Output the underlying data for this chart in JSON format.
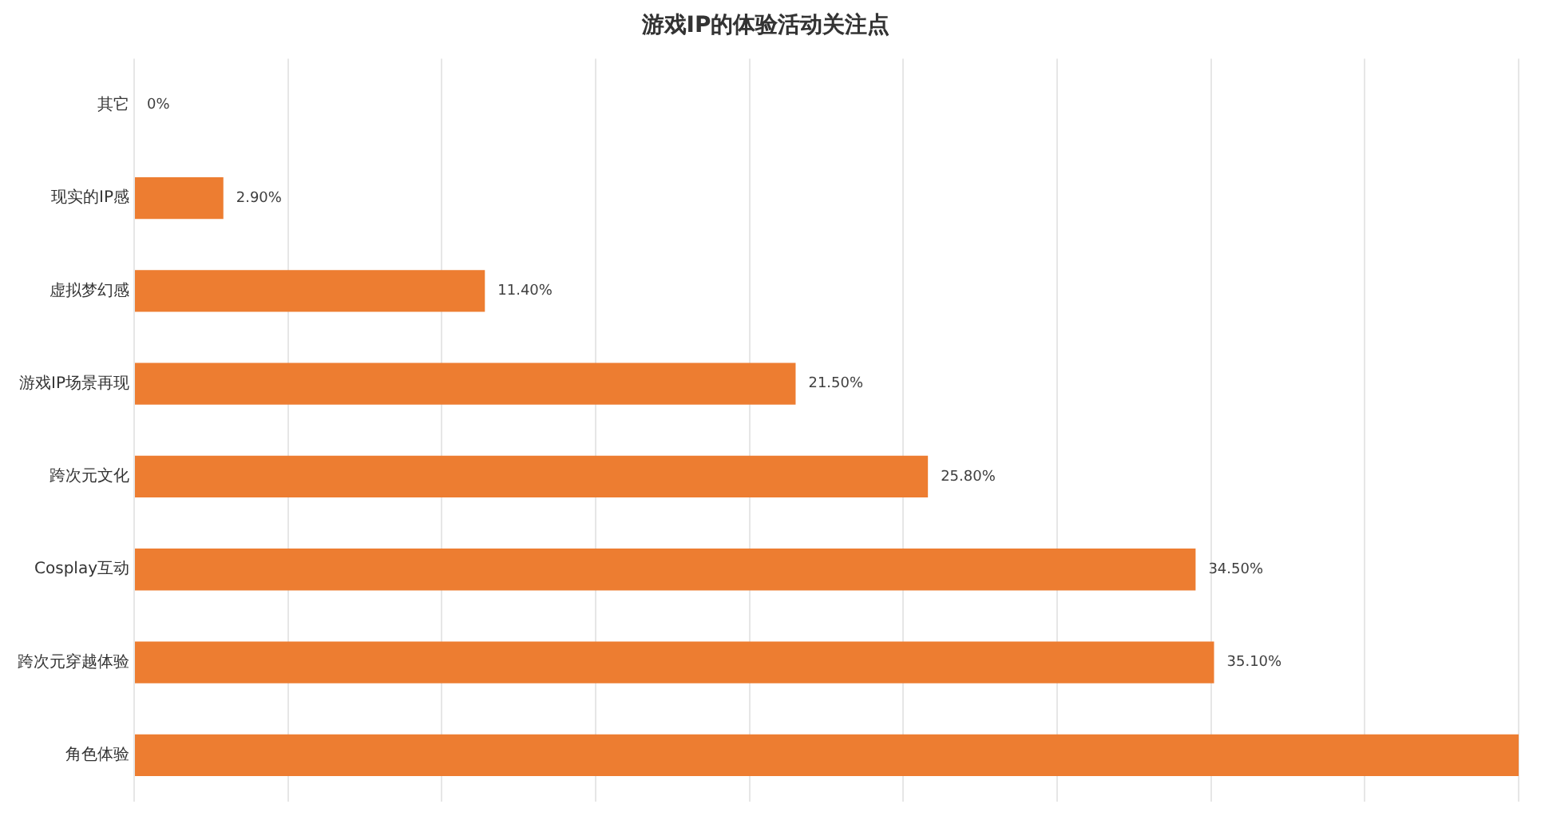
{
  "chart_data": {
    "type": "bar",
    "orientation": "horizontal",
    "title": "游戏IP的体验活动关注点",
    "categories": [
      "其它",
      "现实的IP感",
      "虚拟梦幻感",
      "游戏IP场景再现",
      "跨次元文化",
      "Cosplay互动",
      "跨次元穿越体验",
      "角色体验"
    ],
    "values": [
      0,
      2.9,
      11.4,
      21.5,
      25.8,
      34.5,
      35.1,
      45
    ],
    "value_labels": [
      "0%",
      "2.90%",
      "11.40%",
      "21.50%",
      "25.80%",
      "34.50%",
      "35.10%",
      null
    ],
    "color": "#ed7d31",
    "xlim": [
      0,
      45
    ],
    "xticks": [
      {
        "value": 0,
        "label": null
      },
      {
        "value": 5,
        "label": null
      },
      {
        "value": 10,
        "label": null
      },
      {
        "value": 15,
        "label": null
      },
      {
        "value": 20,
        "label": null
      },
      {
        "value": 25,
        "label": null
      },
      {
        "value": 30,
        "label": null
      },
      {
        "value": 35,
        "label": null
      },
      {
        "value": 40,
        "label": null
      },
      {
        "value": 45,
        "label": null
      }
    ],
    "grid": "x",
    "tick_labels": "y"
  }
}
